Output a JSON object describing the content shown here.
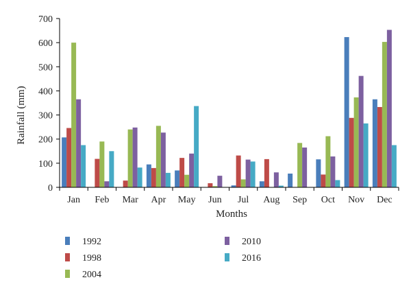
{
  "chart_data": {
    "type": "bar",
    "title": "",
    "xlabel": "Months",
    "ylabel": "Rainfall (mm)",
    "ylim": [
      0,
      700
    ],
    "yticks": [
      0,
      100,
      200,
      300,
      400,
      500,
      600,
      700
    ],
    "grid": false,
    "legend_position": "bottom",
    "categories": [
      "Jan",
      "Feb",
      "Mar",
      "Apr",
      "May",
      "Jun",
      "Jul",
      "Aug",
      "Sep",
      "Oct",
      "Nov",
      "Dec"
    ],
    "series": [
      {
        "name": "1992",
        "color": "#4a7ebb",
        "values": [
          207,
          0,
          0,
          95,
          70,
          0,
          8,
          25,
          57,
          116,
          623,
          365
        ]
      },
      {
        "name": "1998",
        "color": "#be4b48",
        "values": [
          246,
          118,
          28,
          80,
          122,
          17,
          132,
          117,
          0,
          53,
          288,
          333
        ]
      },
      {
        "name": "2004",
        "color": "#98b954",
        "values": [
          600,
          190,
          240,
          255,
          52,
          5,
          33,
          0,
          184,
          212,
          373,
          603
        ]
      },
      {
        "name": "2010",
        "color": "#7d60a0",
        "values": [
          365,
          25,
          248,
          227,
          140,
          48,
          115,
          62,
          165,
          128,
          462,
          653
        ]
      },
      {
        "name": "2016",
        "color": "#46aac5",
        "values": [
          175,
          150,
          82,
          60,
          337,
          0,
          107,
          7,
          0,
          30,
          265,
          175
        ]
      }
    ]
  }
}
